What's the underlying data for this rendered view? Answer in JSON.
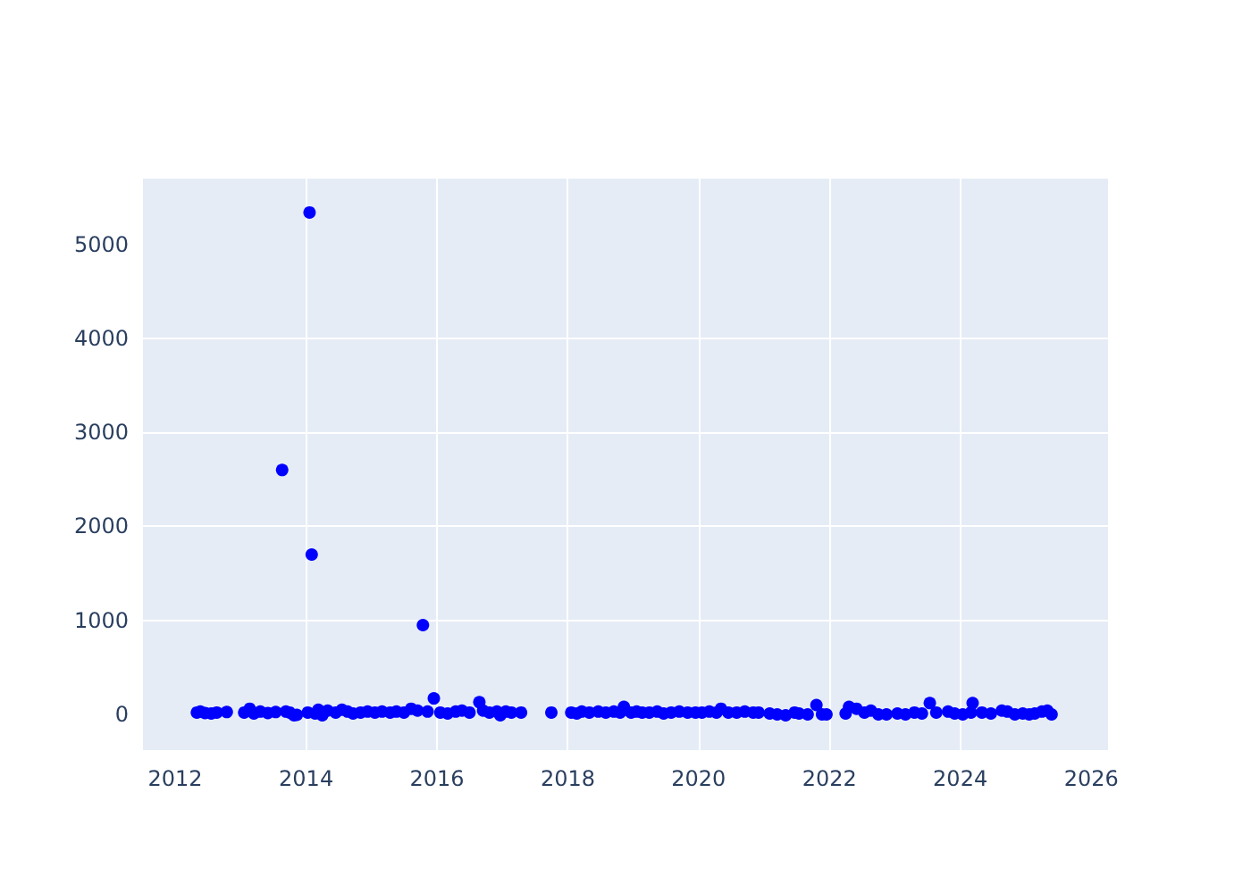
{
  "chart_data": {
    "type": "scatter",
    "marker": "circle",
    "grid": true,
    "xlim": [
      "2011-07-05",
      "2026-04-05"
    ],
    "xticks": [
      {
        "value": "2012-01-01",
        "label": "2012"
      },
      {
        "value": "2014-01-01",
        "label": "2014"
      },
      {
        "value": "2016-01-01",
        "label": "2016"
      },
      {
        "value": "2018-01-01",
        "label": "2018"
      },
      {
        "value": "2020-01-01",
        "label": "2020"
      },
      {
        "value": "2022-01-01",
        "label": "2022"
      },
      {
        "value": "2024-01-01",
        "label": "2024"
      },
      {
        "value": "2026-01-01",
        "label": "2026"
      }
    ],
    "ylim": [
      -380,
      5700
    ],
    "yticks": [
      0,
      1000,
      2000,
      3000,
      4000,
      5000
    ],
    "series": [
      {
        "color": "#0000ff",
        "x": [
          "2012-05-01",
          "2012-05-20",
          "2012-06-15",
          "2012-07-20",
          "2012-08-20",
          "2012-10-15",
          "2013-01-20",
          "2013-02-20",
          "2013-03-15",
          "2013-04-20",
          "2013-06-01",
          "2013-07-15",
          "2013-08-20",
          "2013-09-10",
          "2013-10-01",
          "2013-10-25",
          "2013-11-10",
          "2014-01-10",
          "2014-01-20",
          "2014-02-01",
          "2014-02-20",
          "2014-03-10",
          "2014-04-01",
          "2014-05-01",
          "2014-06-15",
          "2014-07-20",
          "2014-08-20",
          "2014-09-20",
          "2014-11-01",
          "2014-12-10",
          "2015-01-20",
          "2015-03-01",
          "2015-04-15",
          "2015-05-20",
          "2015-07-01",
          "2015-08-10",
          "2015-09-15",
          "2015-10-15",
          "2015-11-10",
          "2015-12-15",
          "2016-01-20",
          "2016-03-01",
          "2016-04-15",
          "2016-05-20",
          "2016-07-01",
          "2016-08-25",
          "2016-09-15",
          "2016-10-20",
          "2016-12-01",
          "2016-12-20",
          "2017-01-20",
          "2017-02-20",
          "2017-04-15",
          "2017-10-01",
          "2018-01-20",
          "2018-02-20",
          "2018-03-20",
          "2018-05-01",
          "2018-06-20",
          "2018-08-01",
          "2018-09-15",
          "2018-10-20",
          "2018-11-10",
          "2018-12-20",
          "2019-01-20",
          "2019-02-20",
          "2019-04-01",
          "2019-05-15",
          "2019-06-20",
          "2019-08-01",
          "2019-09-15",
          "2019-11-01",
          "2019-12-15",
          "2020-01-20",
          "2020-03-01",
          "2020-04-10",
          "2020-05-05",
          "2020-06-15",
          "2020-08-01",
          "2020-09-15",
          "2020-11-01",
          "2020-12-01",
          "2021-02-01",
          "2021-03-15",
          "2021-05-01",
          "2021-06-20",
          "2021-07-15",
          "2021-09-01",
          "2021-10-20",
          "2021-11-20",
          "2021-12-15",
          "2022-04-01",
          "2022-04-20",
          "2022-06-01",
          "2022-07-15",
          "2022-08-20",
          "2022-10-01",
          "2022-11-15",
          "2023-01-15",
          "2023-03-01",
          "2023-04-20",
          "2023-06-01",
          "2023-07-15",
          "2023-08-20",
          "2023-10-25",
          "2023-12-01",
          "2024-01-15",
          "2024-03-01",
          "2024-03-10",
          "2024-05-01",
          "2024-06-20",
          "2024-08-20",
          "2024-09-20",
          "2024-11-01",
          "2024-12-15",
          "2025-01-20",
          "2025-02-20",
          "2025-04-01",
          "2025-05-01",
          "2025-05-25"
        ],
        "values": [
          20,
          30,
          15,
          10,
          20,
          25,
          20,
          60,
          10,
          30,
          15,
          25,
          2600,
          30,
          20,
          -10,
          -5,
          20,
          5340,
          1700,
          10,
          50,
          -10,
          40,
          20,
          50,
          30,
          10,
          20,
          30,
          20,
          30,
          20,
          30,
          20,
          60,
          40,
          950,
          30,
          170,
          20,
          10,
          30,
          40,
          20,
          130,
          40,
          20,
          30,
          -10,
          30,
          20,
          20,
          20,
          20,
          10,
          30,
          20,
          30,
          20,
          30,
          20,
          80,
          20,
          30,
          20,
          20,
          30,
          10,
          20,
          30,
          20,
          20,
          20,
          30,
          20,
          60,
          20,
          20,
          30,
          20,
          20,
          10,
          0,
          -10,
          20,
          10,
          0,
          100,
          0,
          0,
          10,
          80,
          60,
          20,
          40,
          0,
          0,
          10,
          0,
          20,
          10,
          120,
          20,
          30,
          10,
          0,
          20,
          120,
          20,
          10,
          40,
          30,
          0,
          10,
          0,
          10,
          30,
          40,
          0
        ]
      }
    ]
  }
}
